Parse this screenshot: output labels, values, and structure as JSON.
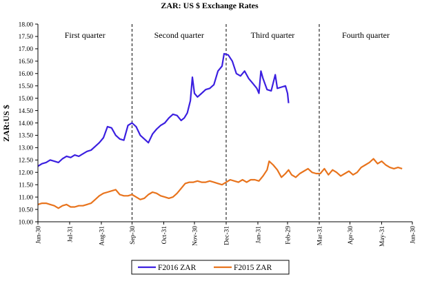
{
  "chart_data": {
    "type": "line",
    "title": "ZAR: US $ Exchange Rates",
    "xlabel": "",
    "ylabel": "ZAR:US $",
    "ylim": [
      10.0,
      18.0
    ],
    "y_ticks": [
      "10.00",
      "10.50",
      "11.00",
      "11.50",
      "12.00",
      "12.50",
      "13.00",
      "13.50",
      "14.00",
      "14.50",
      "15.00",
      "15.50",
      "16.00",
      "16.50",
      "17.00",
      "17.50",
      "18.00"
    ],
    "x_ticks": [
      "Jun-30",
      "Jul-31",
      "Aug-31",
      "Sep-30",
      "Oct-31",
      "Nov-30",
      "Dec-31",
      "Jan-31",
      "Feb-29",
      "Mar-31",
      "Apr-30",
      "May-31",
      "Jun-30"
    ],
    "quarter_labels": [
      "First quarter",
      "Second quarter",
      "Third quarter",
      "Fourth quarter"
    ],
    "quarter_boundaries": [
      "Sep-30",
      "Dec-31",
      "Mar-31"
    ],
    "series": [
      {
        "name": "F2016 ZAR",
        "color": "#3b1fe0",
        "points": [
          [
            0,
            12.25
          ],
          [
            4,
            12.35
          ],
          [
            8,
            12.4
          ],
          [
            12,
            12.5
          ],
          [
            16,
            12.45
          ],
          [
            20,
            12.4
          ],
          [
            24,
            12.55
          ],
          [
            28,
            12.65
          ],
          [
            32,
            12.6
          ],
          [
            36,
            12.7
          ],
          [
            40,
            12.65
          ],
          [
            44,
            12.75
          ],
          [
            48,
            12.85
          ],
          [
            52,
            12.9
          ],
          [
            56,
            13.05
          ],
          [
            60,
            13.2
          ],
          [
            64,
            13.4
          ],
          [
            68,
            13.85
          ],
          [
            72,
            13.8
          ],
          [
            76,
            13.5
          ],
          [
            80,
            13.35
          ],
          [
            84,
            13.3
          ],
          [
            88,
            13.9
          ],
          [
            92,
            14.0
          ],
          [
            96,
            13.85
          ],
          [
            100,
            13.5
          ],
          [
            104,
            13.35
          ],
          [
            108,
            13.2
          ],
          [
            112,
            13.55
          ],
          [
            116,
            13.75
          ],
          [
            120,
            13.9
          ],
          [
            124,
            14.0
          ],
          [
            128,
            14.2
          ],
          [
            132,
            14.35
          ],
          [
            136,
            14.3
          ],
          [
            140,
            14.1
          ],
          [
            143,
            14.2
          ],
          [
            146,
            14.4
          ],
          [
            149,
            14.9
          ],
          [
            151,
            15.85
          ],
          [
            153,
            15.2
          ],
          [
            156,
            15.05
          ],
          [
            160,
            15.2
          ],
          [
            164,
            15.35
          ],
          [
            168,
            15.4
          ],
          [
            172,
            15.55
          ],
          [
            176,
            16.1
          ],
          [
            180,
            16.3
          ],
          [
            182,
            16.8
          ],
          [
            186,
            16.75
          ],
          [
            190,
            16.5
          ],
          [
            194,
            16.0
          ],
          [
            198,
            15.9
          ],
          [
            202,
            16.1
          ],
          [
            206,
            15.8
          ],
          [
            210,
            15.6
          ],
          [
            214,
            15.4
          ],
          [
            216,
            15.2
          ],
          [
            218,
            16.1
          ],
          [
            220,
            15.8
          ],
          [
            224,
            15.35
          ],
          [
            228,
            15.3
          ],
          [
            232,
            15.95
          ],
          [
            234,
            15.4
          ],
          [
            238,
            15.45
          ],
          [
            242,
            15.5
          ],
          [
            244,
            15.2
          ],
          [
            245,
            14.8
          ]
        ]
      },
      {
        "name": "F2015 ZAR",
        "color": "#e8731c",
        "points": [
          [
            0,
            10.7
          ],
          [
            4,
            10.75
          ],
          [
            8,
            10.75
          ],
          [
            12,
            10.7
          ],
          [
            16,
            10.65
          ],
          [
            20,
            10.55
          ],
          [
            24,
            10.65
          ],
          [
            28,
            10.7
          ],
          [
            32,
            10.6
          ],
          [
            36,
            10.6
          ],
          [
            40,
            10.65
          ],
          [
            44,
            10.65
          ],
          [
            48,
            10.7
          ],
          [
            52,
            10.75
          ],
          [
            56,
            10.9
          ],
          [
            60,
            11.05
          ],
          [
            64,
            11.15
          ],
          [
            68,
            11.2
          ],
          [
            72,
            11.25
          ],
          [
            76,
            11.3
          ],
          [
            80,
            11.1
          ],
          [
            84,
            11.05
          ],
          [
            88,
            11.05
          ],
          [
            92,
            11.1
          ],
          [
            96,
            11.0
          ],
          [
            100,
            10.9
          ],
          [
            104,
            10.95
          ],
          [
            108,
            11.1
          ],
          [
            112,
            11.2
          ],
          [
            116,
            11.15
          ],
          [
            120,
            11.05
          ],
          [
            124,
            11.0
          ],
          [
            128,
            10.95
          ],
          [
            132,
            11.0
          ],
          [
            136,
            11.15
          ],
          [
            140,
            11.35
          ],
          [
            144,
            11.55
          ],
          [
            148,
            11.6
          ],
          [
            152,
            11.6
          ],
          [
            156,
            11.65
          ],
          [
            160,
            11.6
          ],
          [
            164,
            11.6
          ],
          [
            168,
            11.65
          ],
          [
            172,
            11.6
          ],
          [
            176,
            11.55
          ],
          [
            180,
            11.5
          ],
          [
            184,
            11.6
          ],
          [
            188,
            11.7
          ],
          [
            192,
            11.65
          ],
          [
            196,
            11.6
          ],
          [
            200,
            11.7
          ],
          [
            204,
            11.6
          ],
          [
            208,
            11.7
          ],
          [
            212,
            11.7
          ],
          [
            216,
            11.65
          ],
          [
            220,
            11.85
          ],
          [
            224,
            12.1
          ],
          [
            226,
            12.45
          ],
          [
            230,
            12.3
          ],
          [
            234,
            12.1
          ],
          [
            238,
            11.8
          ],
          [
            242,
            11.95
          ],
          [
            245,
            12.1
          ],
          [
            248,
            11.9
          ],
          [
            252,
            11.8
          ],
          [
            256,
            11.95
          ],
          [
            260,
            12.05
          ],
          [
            264,
            12.15
          ],
          [
            268,
            12.0
          ],
          [
            272,
            11.95
          ],
          [
            276,
            11.95
          ],
          [
            280,
            12.15
          ],
          [
            284,
            11.9
          ],
          [
            288,
            12.1
          ],
          [
            292,
            12.0
          ],
          [
            296,
            11.85
          ],
          [
            300,
            11.95
          ],
          [
            304,
            12.05
          ],
          [
            308,
            11.9
          ],
          [
            312,
            12.0
          ],
          [
            316,
            12.2
          ],
          [
            320,
            12.3
          ],
          [
            324,
            12.4
          ],
          [
            328,
            12.55
          ],
          [
            332,
            12.35
          ],
          [
            336,
            12.45
          ],
          [
            340,
            12.3
          ],
          [
            344,
            12.2
          ],
          [
            348,
            12.15
          ],
          [
            352,
            12.2
          ],
          [
            356,
            12.15
          ]
        ]
      }
    ],
    "x_day_max": 366,
    "x_tick_days": [
      0,
      31,
      62,
      92,
      123,
      153,
      184,
      215,
      244,
      275,
      305,
      336,
      366
    ],
    "legend_position": "bottom-center"
  }
}
